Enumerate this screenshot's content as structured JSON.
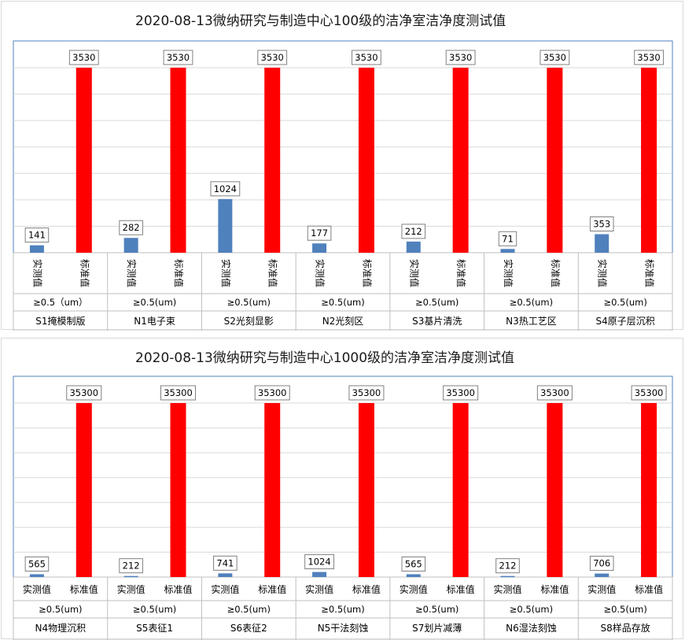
{
  "chart_data": [
    {
      "type": "bar",
      "title": "2020-08-13微纳研究与制造中心100级的洁净室洁净度测试值",
      "categories": [
        "S1掩模制版",
        "N1电子束",
        "S2光刻显影",
        "N2光刻区",
        "S3基片清洗",
        "N3热工艺区",
        "S4原子层沉积"
      ],
      "particle_size": [
        "≥0.5（um）",
        "≥0.5(um)",
        "≥0.5(um)",
        "≥0.5(um)",
        "≥0.5(um)",
        "≥0.5(um)",
        "≥0.5(um)"
      ],
      "series": [
        {
          "name": "实测值",
          "color": "#4f81bd",
          "values": [
            141,
            282,
            1024,
            177,
            212,
            71,
            353
          ]
        },
        {
          "name": "标准值",
          "color": "#ff0000",
          "values": [
            3530,
            3530,
            3530,
            3530,
            3530,
            3530,
            3530
          ]
        }
      ],
      "ylim": [
        0,
        3530
      ],
      "grid": true,
      "series_label_orientation": "vertical"
    },
    {
      "type": "bar",
      "title": "2020-08-13微纳研究与制造中心1000级的洁净室洁净度测试值",
      "categories": [
        "N4物理沉积",
        "S5表征1",
        "S6表征2",
        "N5干法刻蚀",
        "S7划片减薄",
        "N6湿法刻蚀",
        "S8样品存放"
      ],
      "particle_size": [
        "≥0.5(um)",
        "≥0.5(um)",
        "≥0.5(um)",
        "≥0.5(um)",
        "≥0.5(um)",
        "≥0.5(um)",
        "≥0.5(um)"
      ],
      "series": [
        {
          "name": "实测值",
          "color": "#4f81bd",
          "values": [
            565,
            212,
            741,
            1024,
            565,
            212,
            706
          ]
        },
        {
          "name": "标准值",
          "color": "#ff0000",
          "values": [
            35300,
            35300,
            35300,
            35300,
            35300,
            35300,
            35300
          ]
        }
      ],
      "ylim": [
        0,
        35300
      ],
      "grid": true,
      "series_label_orientation": "horizontal"
    }
  ]
}
